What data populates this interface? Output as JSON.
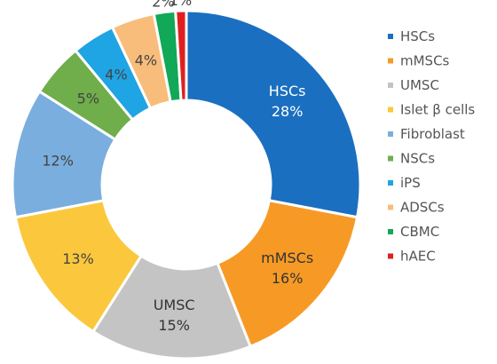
{
  "chart_data": {
    "type": "pie",
    "variant": "donut",
    "categories": [
      "HSCs",
      "mMSCs",
      "UMSC",
      "Islet β cells",
      "Fibroblast",
      "NSCs",
      "iPS",
      "ADSCs",
      "CBMC",
      "hAEC"
    ],
    "values": [
      28,
      16,
      15,
      13,
      12,
      5,
      4,
      4,
      2,
      1
    ],
    "value_labels": [
      "28%",
      "16%",
      "15%",
      "13%",
      "12%",
      "5%",
      "4%",
      "4%",
      "2%",
      "1%"
    ],
    "slice_text": [
      "HSCs",
      "mMSCs",
      "UMSC",
      "",
      "",
      "",
      "",
      "",
      "",
      ""
    ],
    "colors": [
      "#1b6fc0",
      "#f79a25",
      "#c4c4c4",
      "#fbc73c",
      "#7aaedf",
      "#6fae4a",
      "#1fa4e4",
      "#f8bd7a",
      "#11a857",
      "#e02020"
    ],
    "legend_position": "right",
    "title": ""
  }
}
